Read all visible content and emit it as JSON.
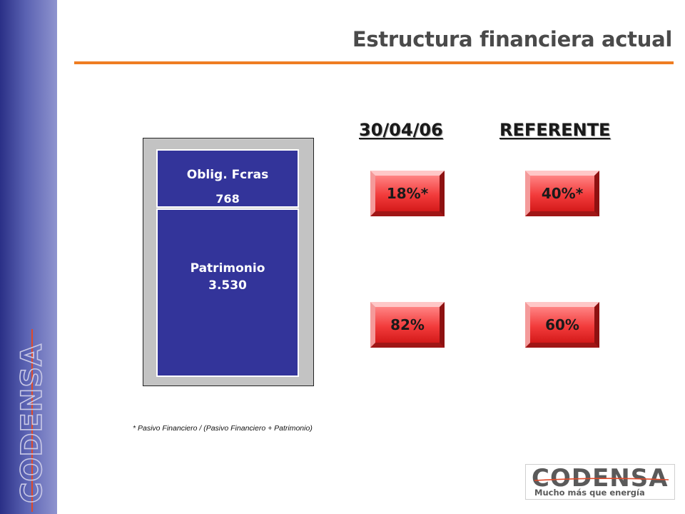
{
  "slide": {
    "title": "Estructura financiera actual",
    "column_headers": {
      "date": "30/04/06",
      "reference": "REFERENTE"
    },
    "stack": {
      "top": {
        "label": "Oblig. Fcras",
        "value": "768"
      },
      "bottom": {
        "label": "Patrimonio",
        "value": "3.530"
      }
    },
    "percentages": {
      "date_top": "18%*",
      "ref_top": "40%*",
      "date_bottom": "82%",
      "ref_bottom": "60%"
    },
    "footnote": "* Pasivo Financiero / (Pasivo Financiero + Patrimonio)"
  },
  "branding": {
    "sidebar_logo": "CODENSA",
    "logo_name": "CODENSA",
    "logo_slogan": "Mucho más que energía"
  },
  "colors": {
    "accent_orange": "#ef7d22",
    "bar_navy": "#33349a",
    "button_red": "#f23b3b"
  }
}
